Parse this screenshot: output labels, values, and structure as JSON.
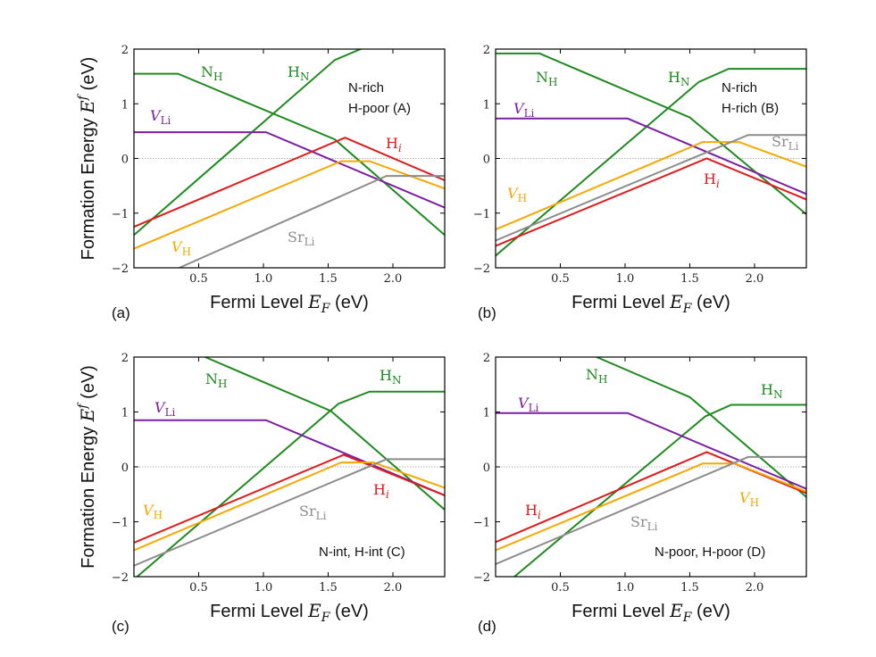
{
  "chart_data": {
    "type": "line",
    "shared": {
      "xlabel": "Fermi Level",
      "xvar": "E",
      "xvar_sub": "F",
      "xunit": "(eV)",
      "ylabel": "Formation Energy",
      "yvar": "E",
      "yvar_sup": "f",
      "yunit": "(eV)",
      "xlim": [
        0,
        2.4
      ],
      "ylim": [
        -2,
        2
      ],
      "xticks": [
        0.5,
        1.0,
        1.5,
        2.0
      ],
      "xtick_labels": [
        "0.5",
        "1.0",
        "1.5",
        "2.0"
      ],
      "yticks": [
        -2,
        -1,
        0,
        1,
        2
      ],
      "ytick_labels": [
        "−2",
        "−1",
        "0",
        "1",
        "2"
      ],
      "colors": {
        "N_H": "#1f8a1f",
        "H_N": "#1f8a1f",
        "V_Li": "#7b1fa2",
        "H_i": "#e0191b",
        "V_H": "#f5a800",
        "Sr_Li": "#8c8c8c"
      }
    },
    "panels": [
      {
        "corner_label": "(a)",
        "condition_lines": [
          "N-rich",
          "H-poor (A)"
        ],
        "series": [
          {
            "id": "N_H",
            "points": [
              [
                0,
                1.55
              ],
              [
                0.34,
                1.55
              ],
              [
                1.55,
                0.35
              ],
              [
                2.4,
                -1.4
              ]
            ]
          },
          {
            "id": "H_N",
            "points": [
              [
                0,
                -1.4
              ],
              [
                1.55,
                1.8
              ],
              [
                1.8,
                2.05
              ]
            ]
          },
          {
            "id": "V_Li",
            "points": [
              [
                0,
                0.48
              ],
              [
                1.02,
                0.48
              ],
              [
                2.4,
                -0.9
              ]
            ]
          },
          {
            "id": "H_i",
            "points": [
              [
                0,
                -1.25
              ],
              [
                1.63,
                0.38
              ],
              [
                2.4,
                -0.4
              ]
            ]
          },
          {
            "id": "V_H",
            "points": [
              [
                0,
                -1.65
              ],
              [
                1.6,
                -0.05
              ],
              [
                1.82,
                -0.05
              ],
              [
                2.4,
                -0.55
              ]
            ]
          },
          {
            "id": "Sr_Li",
            "points": [
              [
                0.35,
                -2.0
              ],
              [
                1.95,
                -0.32
              ],
              [
                2.4,
                -0.32
              ]
            ]
          }
        ],
        "labels": [
          {
            "id": "N_H",
            "base": "N",
            "sub": "H",
            "italic": false
          },
          {
            "id": "H_N",
            "base": "H",
            "sub": "N",
            "italic": false
          },
          {
            "id": "V_Li",
            "base": "V",
            "sub": "Li",
            "italic": true
          },
          {
            "id": "H_i",
            "base": "H",
            "sub": "i",
            "italic": false
          },
          {
            "id": "V_H",
            "base": "V",
            "sub": "H",
            "italic": true
          },
          {
            "id": "Sr_Li",
            "base": "Sr",
            "sub": "Li",
            "italic": false
          }
        ]
      },
      {
        "corner_label": "(b)",
        "condition_lines": [
          "N-rich",
          "H-rich (B)"
        ],
        "series": [
          {
            "id": "N_H",
            "points": [
              [
                0,
                1.92
              ],
              [
                0.34,
                1.92
              ],
              [
                1.5,
                0.75
              ],
              [
                2.4,
                -1.02
              ]
            ]
          },
          {
            "id": "H_N",
            "points": [
              [
                0,
                -1.78
              ],
              [
                1.57,
                1.4
              ],
              [
                1.8,
                1.64
              ],
              [
                2.4,
                1.64
              ]
            ]
          },
          {
            "id": "V_Li",
            "points": [
              [
                0,
                0.73
              ],
              [
                1.02,
                0.73
              ],
              [
                2.4,
                -0.65
              ]
            ]
          },
          {
            "id": "H_i",
            "points": [
              [
                0,
                -1.6
              ],
              [
                1.63,
                0.0
              ],
              [
                2.4,
                -0.75
              ]
            ]
          },
          {
            "id": "V_H",
            "points": [
              [
                0,
                -1.3
              ],
              [
                1.6,
                0.3
              ],
              [
                1.88,
                0.3
              ],
              [
                2.4,
                -0.15
              ]
            ]
          },
          {
            "id": "Sr_Li",
            "points": [
              [
                0,
                -1.5
              ],
              [
                1.95,
                0.43
              ],
              [
                2.4,
                0.43
              ]
            ]
          }
        ],
        "labels": [
          {
            "id": "N_H",
            "base": "N",
            "sub": "H",
            "italic": false
          },
          {
            "id": "H_N",
            "base": "H",
            "sub": "N",
            "italic": false
          },
          {
            "id": "V_Li",
            "base": "V",
            "sub": "Li",
            "italic": true
          },
          {
            "id": "H_i",
            "base": "H",
            "sub": "i",
            "italic": false
          },
          {
            "id": "V_H",
            "base": "V",
            "sub": "H",
            "italic": true
          },
          {
            "id": "Sr_Li",
            "base": "Sr",
            "sub": "Li",
            "italic": false
          }
        ]
      },
      {
        "corner_label": "(c)",
        "condition_lines": [
          "N-int, H-int (C)"
        ],
        "series": [
          {
            "id": "N_H",
            "points": [
              [
                0.55,
                2.0
              ],
              [
                1.52,
                1.02
              ],
              [
                2.4,
                -0.78
              ]
            ]
          },
          {
            "id": "H_N",
            "points": [
              [
                0,
                -2.05
              ],
              [
                1.58,
                1.15
              ],
              [
                1.82,
                1.37
              ],
              [
                2.4,
                1.37
              ]
            ]
          },
          {
            "id": "V_Li",
            "points": [
              [
                0,
                0.85
              ],
              [
                1.02,
                0.85
              ],
              [
                2.4,
                -0.52
              ]
            ]
          },
          {
            "id": "H_i",
            "points": [
              [
                0,
                -1.38
              ],
              [
                1.62,
                0.22
              ],
              [
                2.4,
                -0.52
              ]
            ]
          },
          {
            "id": "V_H",
            "points": [
              [
                0,
                -1.52
              ],
              [
                1.6,
                0.08
              ],
              [
                1.85,
                0.08
              ],
              [
                2.4,
                -0.38
              ]
            ]
          },
          {
            "id": "Sr_Li",
            "points": [
              [
                0,
                -1.8
              ],
              [
                1.95,
                0.14
              ],
              [
                2.4,
                0.14
              ]
            ]
          }
        ],
        "labels": [
          {
            "id": "N_H",
            "base": "N",
            "sub": "H",
            "italic": false
          },
          {
            "id": "H_N",
            "base": "H",
            "sub": "N",
            "italic": false
          },
          {
            "id": "V_Li",
            "base": "V",
            "sub": "Li",
            "italic": true
          },
          {
            "id": "H_i",
            "base": "H",
            "sub": "i",
            "italic": false
          },
          {
            "id": "V_H",
            "base": "V",
            "sub": "H",
            "italic": true
          },
          {
            "id": "Sr_Li",
            "base": "Sr",
            "sub": "Li",
            "italic": false
          }
        ]
      },
      {
        "corner_label": "(d)",
        "condition_lines": [
          "N-poor, H-poor (D)"
        ],
        "series": [
          {
            "id": "N_H",
            "points": [
              [
                0.78,
                2.0
              ],
              [
                1.5,
                1.27
              ],
              [
                2.4,
                -0.55
              ]
            ]
          },
          {
            "id": "H_N",
            "points": [
              [
                0.12,
                -2.05
              ],
              [
                1.62,
                0.92
              ],
              [
                1.82,
                1.13
              ],
              [
                2.4,
                1.13
              ]
            ]
          },
          {
            "id": "V_Li",
            "points": [
              [
                0,
                0.98
              ],
              [
                1.02,
                0.98
              ],
              [
                2.4,
                -0.4
              ]
            ]
          },
          {
            "id": "H_i",
            "points": [
              [
                0,
                -1.37
              ],
              [
                1.63,
                0.27
              ],
              [
                2.4,
                -0.48
              ]
            ]
          },
          {
            "id": "V_H",
            "points": [
              [
                0,
                -1.52
              ],
              [
                1.6,
                0.06
              ],
              [
                1.85,
                0.06
              ],
              [
                2.4,
                -0.45
              ]
            ]
          },
          {
            "id": "Sr_Li",
            "points": [
              [
                0,
                -1.77
              ],
              [
                1.95,
                0.18
              ],
              [
                2.4,
                0.18
              ]
            ]
          }
        ],
        "labels": [
          {
            "id": "N_H",
            "base": "N",
            "sub": "H",
            "italic": false
          },
          {
            "id": "H_N",
            "base": "H",
            "sub": "N",
            "italic": false
          },
          {
            "id": "V_Li",
            "base": "V",
            "sub": "Li",
            "italic": true
          },
          {
            "id": "H_i",
            "base": "H",
            "sub": "i",
            "italic": false
          },
          {
            "id": "V_H",
            "base": "V",
            "sub": "H",
            "italic": true
          },
          {
            "id": "Sr_Li",
            "base": "Sr",
            "sub": "Li",
            "italic": false
          }
        ]
      }
    ]
  }
}
